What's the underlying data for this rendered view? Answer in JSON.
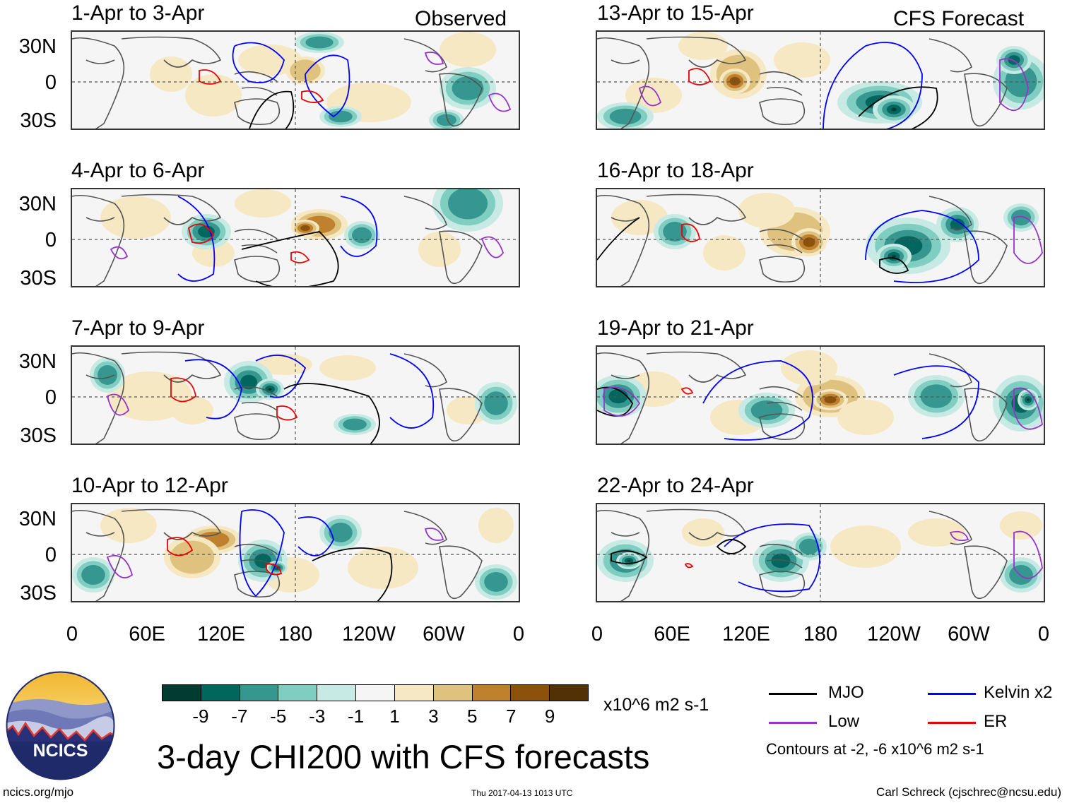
{
  "observed_label": "Observed",
  "forecast_label": "CFS Forecast",
  "lat_labels": [
    "30N",
    "0",
    "30S"
  ],
  "lon_labels": [
    "0",
    "60E",
    "120E",
    "180",
    "120W",
    "60W",
    "0"
  ],
  "panels": [
    {
      "title": "1-Apr to 3-Apr",
      "group": "Observed"
    },
    {
      "title": "4-Apr to 6-Apr",
      "group": "Observed"
    },
    {
      "title": "7-Apr to 9-Apr",
      "group": "Observed"
    },
    {
      "title": "10-Apr to 12-Apr",
      "group": "Observed"
    },
    {
      "title": "13-Apr to 15-Apr",
      "group": "CFS Forecast"
    },
    {
      "title": "16-Apr to 18-Apr",
      "group": "CFS Forecast"
    },
    {
      "title": "19-Apr to 21-Apr",
      "group": "CFS Forecast"
    },
    {
      "title": "22-Apr to 24-Apr",
      "group": "CFS Forecast"
    }
  ],
  "colorbar": {
    "colors": [
      "#003c30",
      "#01665e",
      "#35978f",
      "#80cdc1",
      "#c7eae5",
      "#f5f5f5",
      "#f6e8c3",
      "#dfc27d",
      "#bf812d",
      "#8c510a",
      "#543005"
    ],
    "labels": [
      "-9",
      "-7",
      "-5",
      "-3",
      "-1",
      "1",
      "3",
      "5",
      "7",
      "9"
    ],
    "units": "x10^6 m2 s-1"
  },
  "legend": {
    "items": [
      {
        "label": "MJO",
        "color": "#000000"
      },
      {
        "label": "Kelvin x2",
        "color": "#0000ff"
      },
      {
        "label": "Low",
        "color": "#9933cc"
      },
      {
        "label": "ER",
        "color": "#ee0000"
      }
    ],
    "note": "Contours at -2, -6 x10^6 m2 s-1"
  },
  "logo_text": "NCICS",
  "main_title": "3-day CHI200 with CFS forecasts",
  "footer": {
    "left": "ncics.org/mjo",
    "center": "Thu 2017-04-13 1013 UTC",
    "right": "Carl Schreck (cjschrec@ncsu.edu)"
  }
}
